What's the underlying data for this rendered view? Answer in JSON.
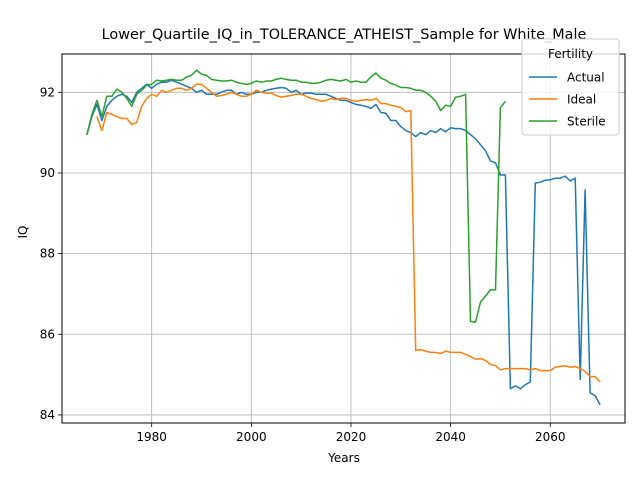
{
  "chart_data": {
    "type": "line",
    "title": "Lower_Quartile_IQ_in_TOLERANCE_ATHEIST_Sample for White_Male",
    "xlabel": "Years",
    "ylabel": "IQ",
    "xlim": [
      1962,
      2075
    ],
    "ylim": [
      83.8,
      92.95
    ],
    "xticks": [
      1980,
      2000,
      2020,
      2040,
      2060
    ],
    "yticks": [
      84,
      86,
      88,
      90,
      92
    ],
    "xtick_labels": [
      "1980",
      "2000",
      "2020",
      "2040",
      "2060"
    ],
    "ytick_labels": [
      "84",
      "86",
      "88",
      "90",
      "92"
    ],
    "grid": true,
    "legend": {
      "title": "Fertility",
      "placement": "upper right"
    },
    "series": [
      {
        "name": "Actual",
        "color": "#1f77b4",
        "points": [
          [
            1967,
            90.95
          ],
          [
            1968,
            91.4
          ],
          [
            1969,
            91.7
          ],
          [
            1970,
            91.3
          ],
          [
            1971,
            91.65
          ],
          [
            1972,
            91.8
          ],
          [
            1973,
            91.9
          ],
          [
            1974,
            91.95
          ],
          [
            1975,
            91.9
          ],
          [
            1976,
            91.75
          ],
          [
            1977,
            92.0
          ],
          [
            1978,
            92.1
          ],
          [
            1979,
            92.2
          ],
          [
            1980,
            92.1
          ],
          [
            1981,
            92.2
          ],
          [
            1982,
            92.25
          ],
          [
            1983,
            92.25
          ],
          [
            1984,
            92.3
          ],
          [
            1985,
            92.25
          ],
          [
            1986,
            92.2
          ],
          [
            1987,
            92.15
          ],
          [
            1988,
            92.1
          ],
          [
            1989,
            92.0
          ],
          [
            1990,
            92.05
          ],
          [
            1991,
            91.95
          ],
          [
            1992,
            91.95
          ],
          [
            1993,
            91.95
          ],
          [
            1994,
            92.0
          ],
          [
            1995,
            92.05
          ],
          [
            1996,
            92.05
          ],
          [
            1997,
            91.95
          ],
          [
            1998,
            92.0
          ],
          [
            1999,
            91.95
          ],
          [
            2000,
            91.95
          ],
          [
            2001,
            92.0
          ],
          [
            2002,
            92.0
          ],
          [
            2003,
            92.05
          ],
          [
            2004,
            92.08
          ],
          [
            2005,
            92.1
          ],
          [
            2006,
            92.12
          ],
          [
            2007,
            92.1
          ],
          [
            2008,
            92.0
          ],
          [
            2009,
            92.05
          ],
          [
            2010,
            91.95
          ],
          [
            2011,
            91.98
          ],
          [
            2012,
            91.98
          ],
          [
            2013,
            91.95
          ],
          [
            2014,
            91.95
          ],
          [
            2015,
            91.95
          ],
          [
            2016,
            91.9
          ],
          [
            2017,
            91.85
          ],
          [
            2018,
            91.8
          ],
          [
            2019,
            91.8
          ],
          [
            2020,
            91.75
          ],
          [
            2021,
            91.7
          ],
          [
            2022,
            91.68
          ],
          [
            2023,
            91.65
          ],
          [
            2024,
            91.6
          ],
          [
            2025,
            91.7
          ],
          [
            2026,
            91.5
          ],
          [
            2027,
            91.48
          ],
          [
            2028,
            91.3
          ],
          [
            2029,
            91.3
          ],
          [
            2030,
            91.15
          ],
          [
            2031,
            91.05
          ],
          [
            2032,
            91.0
          ],
          [
            2033,
            90.9
          ],
          [
            2034,
            91.0
          ],
          [
            2035,
            90.95
          ],
          [
            2036,
            91.05
          ],
          [
            2037,
            91.0
          ],
          [
            2038,
            91.1
          ],
          [
            2039,
            91.02
          ],
          [
            2040,
            91.12
          ],
          [
            2041,
            91.1
          ],
          [
            2042,
            91.1
          ],
          [
            2043,
            91.05
          ],
          [
            2044,
            90.95
          ],
          [
            2045,
            90.85
          ],
          [
            2046,
            90.7
          ],
          [
            2047,
            90.55
          ],
          [
            2048,
            90.3
          ],
          [
            2049,
            90.25
          ],
          [
            2050,
            89.95
          ],
          [
            2051,
            89.95
          ],
          [
            2052,
            84.65
          ],
          [
            2053,
            84.72
          ],
          [
            2054,
            84.65
          ],
          [
            2055,
            84.75
          ],
          [
            2056,
            84.82
          ],
          [
            2057,
            89.75
          ],
          [
            2058,
            89.77
          ],
          [
            2059,
            89.82
          ],
          [
            2060,
            89.83
          ],
          [
            2061,
            89.87
          ],
          [
            2062,
            89.87
          ],
          [
            2063,
            89.92
          ],
          [
            2064,
            89.8
          ],
          [
            2065,
            89.87
          ],
          [
            2066,
            84.88
          ],
          [
            2067,
            89.58
          ],
          [
            2068,
            84.55
          ],
          [
            2069,
            84.48
          ],
          [
            2070,
            84.25
          ]
        ]
      },
      {
        "name": "Ideal",
        "color": "#ff7f0e",
        "points": [
          [
            1969,
            91.4
          ],
          [
            1970,
            91.05
          ],
          [
            1971,
            91.5
          ],
          [
            1972,
            91.45
          ],
          [
            1973,
            91.4
          ],
          [
            1974,
            91.35
          ],
          [
            1975,
            91.35
          ],
          [
            1976,
            91.2
          ],
          [
            1977,
            91.25
          ],
          [
            1978,
            91.65
          ],
          [
            1979,
            91.85
          ],
          [
            1980,
            91.95
          ],
          [
            1981,
            91.9
          ],
          [
            1982,
            92.05
          ],
          [
            1983,
            92.0
          ],
          [
            1984,
            92.05
          ],
          [
            1985,
            92.1
          ],
          [
            1986,
            92.1
          ],
          [
            1987,
            92.05
          ],
          [
            1988,
            92.1
          ],
          [
            1989,
            92.2
          ],
          [
            1990,
            92.2
          ],
          [
            1991,
            92.1
          ],
          [
            1992,
            92.0
          ],
          [
            1993,
            91.9
          ],
          [
            1994,
            91.92
          ],
          [
            1995,
            91.95
          ],
          [
            1996,
            92.0
          ],
          [
            1997,
            91.95
          ],
          [
            1998,
            91.9
          ],
          [
            1999,
            91.9
          ],
          [
            2000,
            91.95
          ],
          [
            2001,
            92.05
          ],
          [
            2002,
            92.0
          ],
          [
            2003,
            91.98
          ],
          [
            2004,
            91.98
          ],
          [
            2005,
            91.92
          ],
          [
            2006,
            91.88
          ],
          [
            2007,
            91.9
          ],
          [
            2008,
            91.92
          ],
          [
            2009,
            91.95
          ],
          [
            2010,
            91.95
          ],
          [
            2011,
            91.9
          ],
          [
            2012,
            91.85
          ],
          [
            2013,
            91.82
          ],
          [
            2014,
            91.78
          ],
          [
            2015,
            91.8
          ],
          [
            2016,
            91.85
          ],
          [
            2017,
            91.82
          ],
          [
            2018,
            91.85
          ],
          [
            2019,
            91.85
          ],
          [
            2020,
            91.8
          ],
          [
            2021,
            91.78
          ],
          [
            2022,
            91.8
          ],
          [
            2023,
            91.82
          ],
          [
            2024,
            91.8
          ],
          [
            2025,
            91.85
          ],
          [
            2026,
            91.72
          ],
          [
            2027,
            91.72
          ],
          [
            2028,
            91.68
          ],
          [
            2029,
            91.65
          ],
          [
            2030,
            91.62
          ],
          [
            2031,
            91.52
          ],
          [
            2032,
            91.55
          ],
          [
            2033,
            85.6
          ],
          [
            2034,
            85.62
          ],
          [
            2035,
            85.58
          ],
          [
            2036,
            85.55
          ],
          [
            2037,
            85.55
          ],
          [
            2038,
            85.52
          ],
          [
            2039,
            85.58
          ],
          [
            2040,
            85.55
          ],
          [
            2041,
            85.55
          ],
          [
            2042,
            85.55
          ],
          [
            2043,
            85.5
          ],
          [
            2044,
            85.45
          ],
          [
            2045,
            85.38
          ],
          [
            2046,
            85.4
          ],
          [
            2047,
            85.35
          ],
          [
            2048,
            85.25
          ],
          [
            2049,
            85.22
          ],
          [
            2050,
            85.12
          ],
          [
            2051,
            85.15
          ],
          [
            2052,
            85.15
          ],
          [
            2053,
            85.15
          ],
          [
            2054,
            85.15
          ],
          [
            2055,
            85.15
          ],
          [
            2056,
            85.12
          ],
          [
            2057,
            85.15
          ],
          [
            2058,
            85.1
          ],
          [
            2059,
            85.1
          ],
          [
            2060,
            85.1
          ],
          [
            2061,
            85.18
          ],
          [
            2062,
            85.2
          ],
          [
            2063,
            85.22
          ],
          [
            2064,
            85.18
          ],
          [
            2065,
            85.2
          ],
          [
            2066,
            85.15
          ],
          [
            2067,
            85.08
          ],
          [
            2068,
            84.95
          ],
          [
            2069,
            84.95
          ],
          [
            2070,
            84.82
          ]
        ]
      },
      {
        "name": "Sterile",
        "color": "#2ca02c",
        "points": [
          [
            1967,
            90.95
          ],
          [
            1968,
            91.45
          ],
          [
            1969,
            91.8
          ],
          [
            1970,
            91.4
          ],
          [
            1971,
            91.9
          ],
          [
            1972,
            91.9
          ],
          [
            1973,
            92.08
          ],
          [
            1974,
            92.0
          ],
          [
            1975,
            91.85
          ],
          [
            1976,
            91.65
          ],
          [
            1977,
            91.95
          ],
          [
            1978,
            92.05
          ],
          [
            1979,
            92.18
          ],
          [
            1980,
            92.2
          ],
          [
            1981,
            92.3
          ],
          [
            1982,
            92.28
          ],
          [
            1983,
            92.3
          ],
          [
            1984,
            92.32
          ],
          [
            1985,
            92.3
          ],
          [
            1986,
            92.3
          ],
          [
            1987,
            92.38
          ],
          [
            1988,
            92.42
          ],
          [
            1989,
            92.55
          ],
          [
            1990,
            92.45
          ],
          [
            1991,
            92.42
          ],
          [
            1992,
            92.32
          ],
          [
            1993,
            92.3
          ],
          [
            1994,
            92.28
          ],
          [
            1995,
            92.28
          ],
          [
            1996,
            92.3
          ],
          [
            1997,
            92.25
          ],
          [
            1998,
            92.22
          ],
          [
            1999,
            92.2
          ],
          [
            2000,
            92.22
          ],
          [
            2001,
            92.28
          ],
          [
            2002,
            92.25
          ],
          [
            2003,
            92.28
          ],
          [
            2004,
            92.28
          ],
          [
            2005,
            92.32
          ],
          [
            2006,
            92.35
          ],
          [
            2007,
            92.32
          ],
          [
            2008,
            92.3
          ],
          [
            2009,
            92.3
          ],
          [
            2010,
            92.25
          ],
          [
            2011,
            92.25
          ],
          [
            2012,
            92.22
          ],
          [
            2013,
            92.22
          ],
          [
            2014,
            92.25
          ],
          [
            2015,
            92.3
          ],
          [
            2016,
            92.32
          ],
          [
            2017,
            92.3
          ],
          [
            2018,
            92.28
          ],
          [
            2019,
            92.32
          ],
          [
            2020,
            92.25
          ],
          [
            2021,
            92.28
          ],
          [
            2022,
            92.25
          ],
          [
            2023,
            92.25
          ],
          [
            2024,
            92.38
          ],
          [
            2025,
            92.48
          ],
          [
            2026,
            92.35
          ],
          [
            2027,
            92.3
          ],
          [
            2028,
            92.22
          ],
          [
            2029,
            92.18
          ],
          [
            2030,
            92.12
          ],
          [
            2031,
            92.12
          ],
          [
            2032,
            92.1
          ],
          [
            2033,
            92.05
          ],
          [
            2034,
            92.05
          ],
          [
            2035,
            92.0
          ],
          [
            2036,
            91.9
          ],
          [
            2037,
            91.78
          ],
          [
            2038,
            91.55
          ],
          [
            2039,
            91.68
          ],
          [
            2040,
            91.65
          ],
          [
            2041,
            91.88
          ],
          [
            2042,
            91.9
          ],
          [
            2043,
            91.95
          ],
          [
            2044,
            86.32
          ],
          [
            2045,
            86.3
          ],
          [
            2046,
            86.8
          ],
          [
            2047,
            86.95
          ],
          [
            2048,
            87.1
          ],
          [
            2049,
            87.1
          ],
          [
            2050,
            91.62
          ],
          [
            2051,
            91.78
          ]
        ]
      }
    ]
  }
}
